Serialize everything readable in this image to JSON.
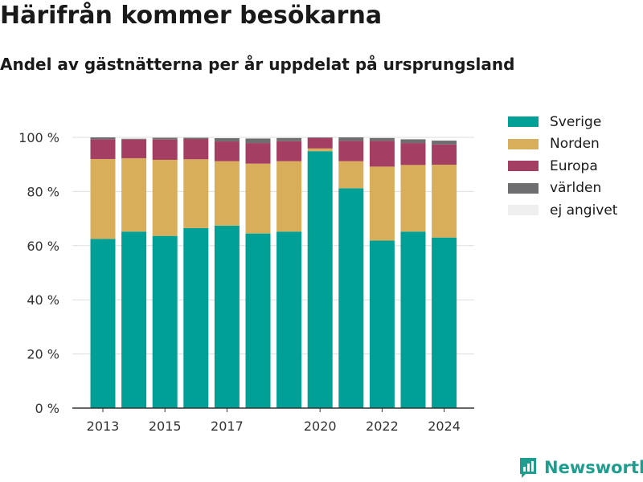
{
  "header": {
    "title": "Härifrån kommer besökarna",
    "subtitle": "Andel av gästnätterna per år uppdelat på ursprungsland"
  },
  "brand": {
    "name": "Newsworthy",
    "color": "#1f9e8f"
  },
  "chart_data": {
    "type": "bar",
    "stacked": true,
    "categories": [
      2013,
      2014,
      2015,
      2016,
      2017,
      2018,
      2019,
      2020,
      2021,
      2022,
      2023,
      2024
    ],
    "x_tick_labels": [
      "2013",
      "2015",
      "2017",
      "2020",
      "2022",
      "2024"
    ],
    "y_ticks": [
      0,
      20,
      40,
      60,
      80,
      100
    ],
    "y_tick_suffix": " %",
    "ylim": [
      0,
      100
    ],
    "grid": true,
    "legend_position": "top-right",
    "series": [
      {
        "name": "Sverige",
        "color": "#00a097",
        "values": [
          62.5,
          65.2,
          63.6,
          66.5,
          67.4,
          64.5,
          65.2,
          94.9,
          81.2,
          61.9,
          65.2,
          63.0
        ]
      },
      {
        "name": "Norden",
        "color": "#d9ae5b",
        "values": [
          29.5,
          27.1,
          28.1,
          25.4,
          23.8,
          25.8,
          26.0,
          1.0,
          10.0,
          27.3,
          24.6,
          26.9
        ]
      },
      {
        "name": "Europa",
        "color": "#a53e63",
        "values": [
          7.3,
          6.9,
          7.5,
          7.5,
          7.3,
          7.6,
          7.4,
          3.9,
          7.5,
          9.5,
          8.1,
          7.5
        ]
      },
      {
        "name": "världen",
        "color": "#6e6e70",
        "values": [
          0.7,
          0.3,
          0.7,
          0.5,
          1.2,
          1.7,
          1.2,
          0.2,
          1.3,
          1.1,
          1.4,
          1.4
        ]
      },
      {
        "name": "ej angivet",
        "color": "#efefef",
        "values": [
          0.0,
          0.2,
          0.1,
          0.1,
          0.3,
          0.4,
          0.2,
          0.0,
          0.0,
          0.2,
          0.2,
          0.2
        ]
      }
    ]
  }
}
